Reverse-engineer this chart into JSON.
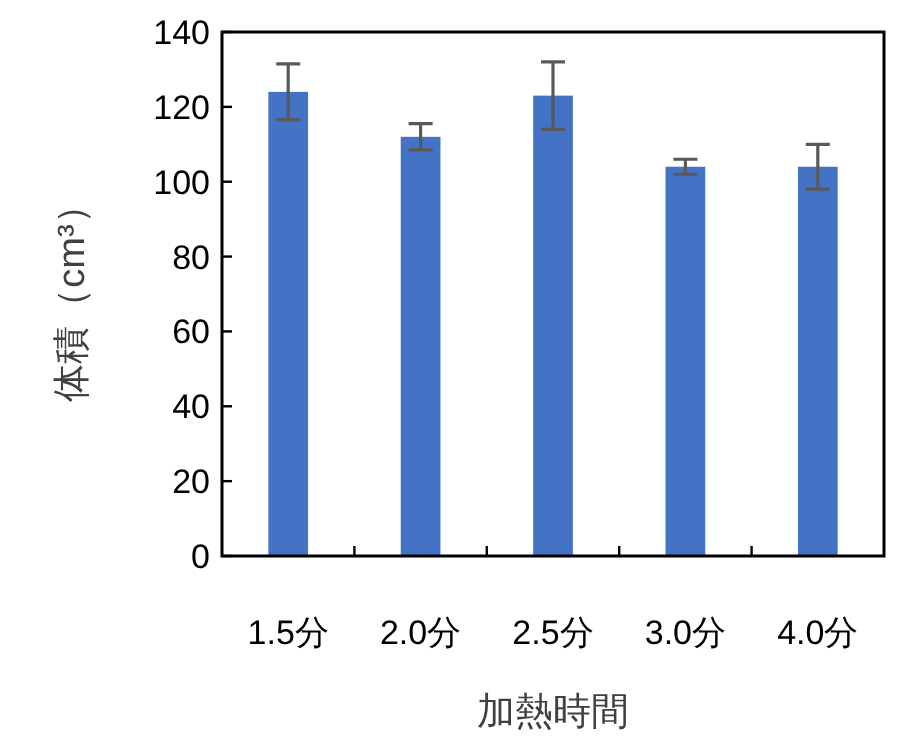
{
  "chart_data": {
    "type": "bar",
    "xlabel": "加熱時間",
    "ylabel": "体積（cm³）",
    "categories": [
      "1.5分",
      "2.0分",
      "2.5分",
      "3.0分",
      "4.0分"
    ],
    "values": [
      124,
      112,
      123,
      104,
      104
    ],
    "errors": [
      7.5,
      3.5,
      9,
      2,
      6
    ],
    "color": "#4472c4",
    "ylim": [
      0,
      140
    ],
    "yticks": [
      0,
      20,
      40,
      60,
      80,
      100,
      120,
      140
    ],
    "grid": false
  }
}
